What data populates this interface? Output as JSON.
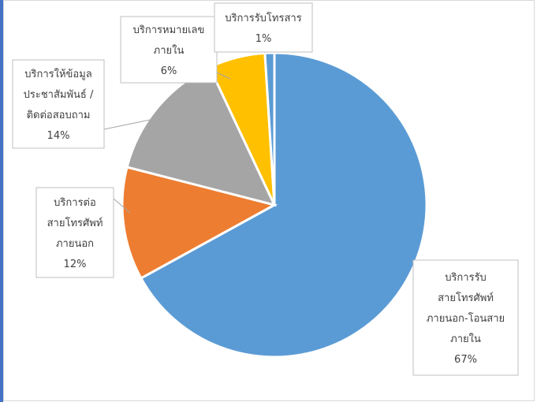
{
  "chart_data": {
    "type": "pie",
    "title": "",
    "slices": [
      {
        "label_lines": [
          "บริการรับ",
          "สายโทรศัพท์",
          "ภายนอก-โอนสาย",
          "ภายใน"
        ],
        "value": 67,
        "percent_label": "67%",
        "color": "#5b9bd5"
      },
      {
        "label_lines": [
          "บริการต่อ",
          "สายโทรศัพท์",
          "ภายนอก"
        ],
        "value": 12,
        "percent_label": "12%",
        "color": "#ed7d31"
      },
      {
        "label_lines": [
          "บริการให้ข้อมูล",
          "ประชาสัมพันธ์ /",
          "ติดต่อสอบถาม"
        ],
        "value": 14,
        "percent_label": "14%",
        "color": "#a5a5a5"
      },
      {
        "label_lines": [
          "บริการหมายเลข",
          "ภายใน"
        ],
        "value": 6,
        "percent_label": "6%",
        "color": "#ffc000"
      },
      {
        "label_lines": [
          "บริการรับโทรสาร"
        ],
        "value": 1,
        "percent_label": "1%",
        "color": "#5b9bd5"
      }
    ]
  }
}
